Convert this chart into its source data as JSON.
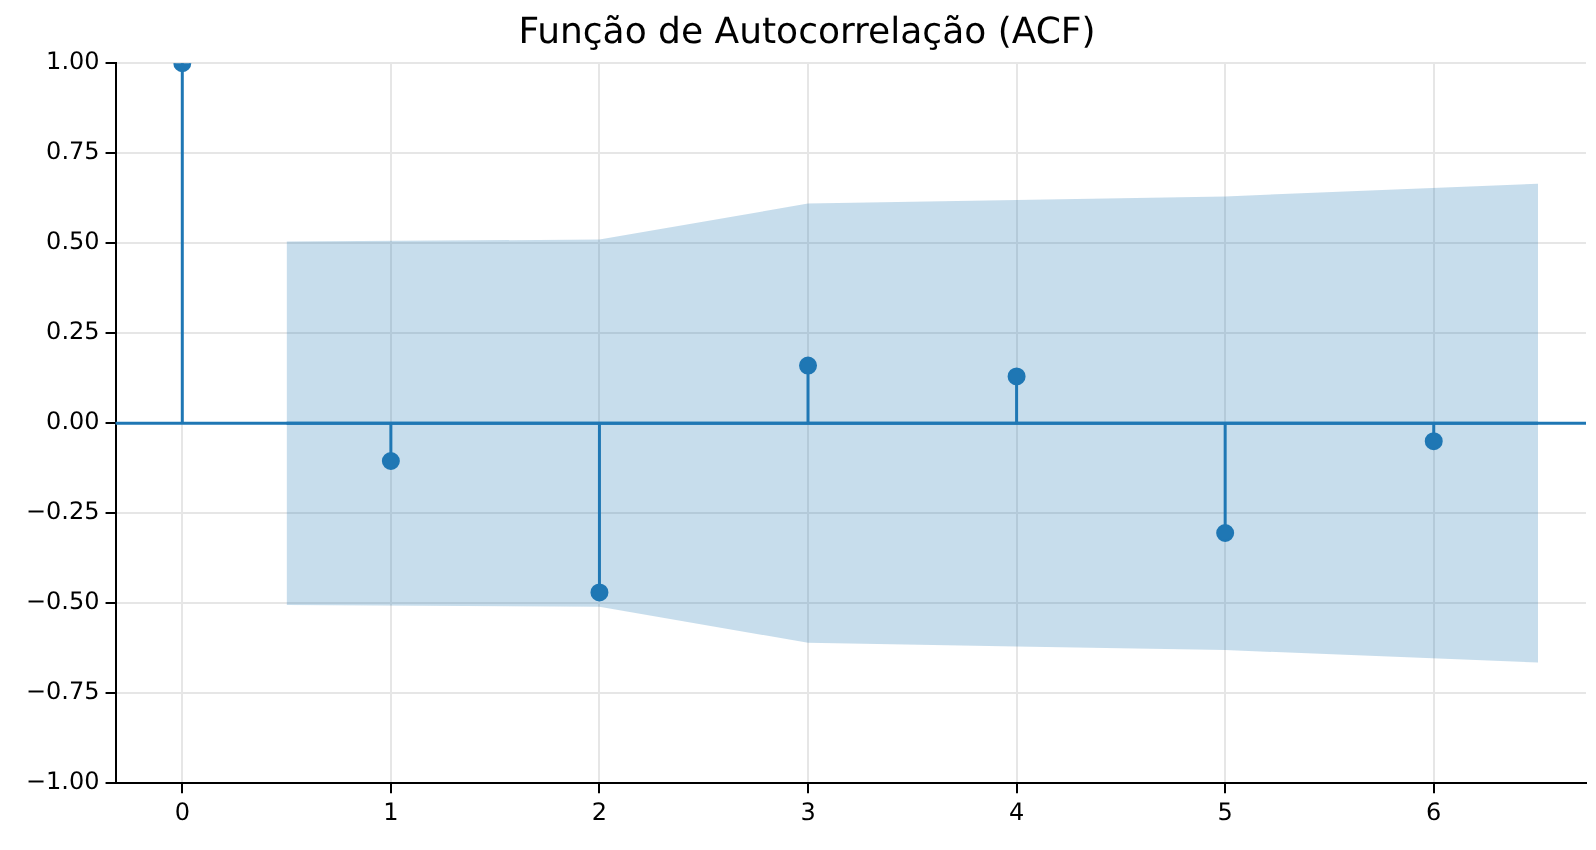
{
  "chart_data": {
    "type": "lollipop",
    "title": "Função de Autocorrelação (ACF)",
    "x": [
      0,
      1,
      2,
      3,
      4,
      5,
      6
    ],
    "series": [
      {
        "color": "#1f77b4",
        "marker": "circle",
        "values": [
          1.0,
          -0.105,
          -0.47,
          0.16,
          0.13,
          -0.305,
          -0.05
        ]
      },
      {
        "type": "line",
        "color": "#1f77b4",
        "x": [
          0.5,
          2,
          3,
          4,
          5,
          6.5
        ],
        "values": [
          0,
          0,
          0,
          0,
          0,
          0
        ],
        "lower": [
          -0.505,
          -0.51,
          -0.61,
          -0.62,
          -0.63,
          -0.665
        ],
        "upper": [
          0.505,
          0.51,
          0.61,
          0.62,
          0.63,
          0.665
        ]
      }
    ],
    "ref_lines": [
      {
        "axis": "y",
        "value": 0,
        "color": "#1f77b4"
      }
    ],
    "xlim": [
      -0.32,
      6.73
    ],
    "xticks": [
      0,
      1,
      2,
      3,
      4,
      5,
      6
    ],
    "ylim": [
      -1,
      1
    ],
    "yticks": [
      {
        "value": -1,
        "label": "−1.00"
      },
      {
        "value": -0.75,
        "label": "−0.75"
      },
      {
        "value": -0.5,
        "label": "−0.50"
      },
      {
        "value": -0.25,
        "label": "−0.25"
      },
      {
        "value": 0,
        "label": "0.00"
      },
      {
        "value": 0.25,
        "label": "0.25"
      },
      {
        "value": 0.5,
        "label": "0.50"
      },
      {
        "value": 0.75,
        "label": "0.75"
      },
      {
        "value": 1,
        "label": "1.00"
      }
    ],
    "grid": true
  }
}
